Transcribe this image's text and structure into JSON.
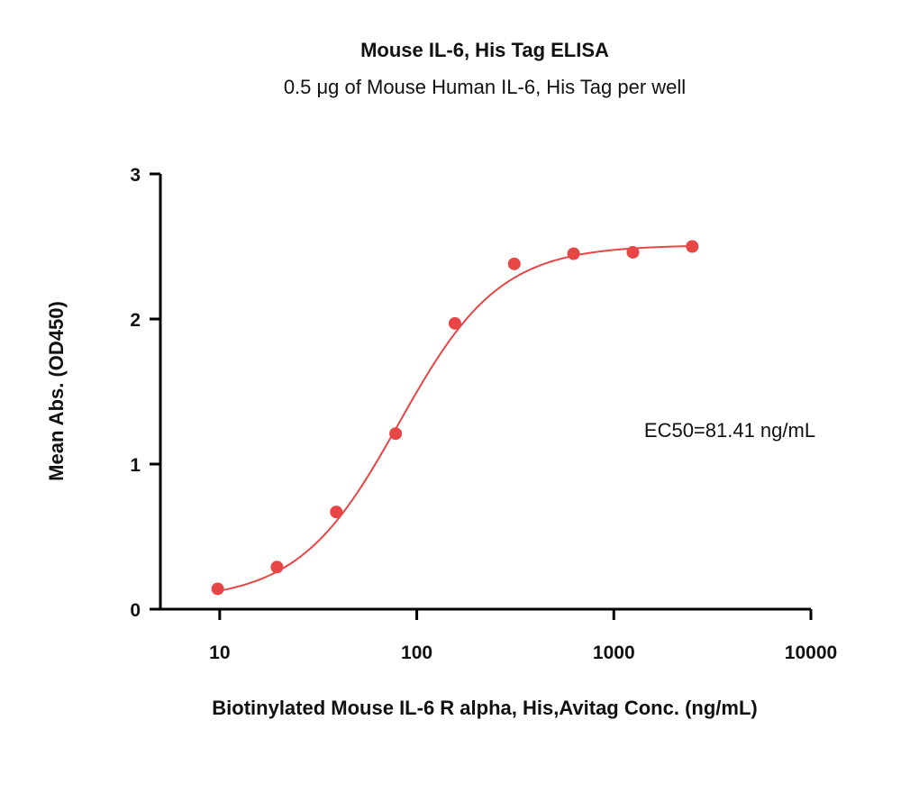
{
  "chart_data": {
    "type": "scatter",
    "title": "Mouse IL-6, His Tag ELISA",
    "subtitle": "0.5 μg of Mouse Human IL-6, His Tag per well",
    "xlabel": "Biotinylated Mouse IL-6 R alpha, His,Avitag Conc. (ng/mL)",
    "ylabel": "Mean Abs. (OD450)",
    "x_scale": "log",
    "xlim": [
      5,
      10000
    ],
    "ylim": [
      0,
      3
    ],
    "x_ticks": [
      10,
      100,
      1000,
      10000
    ],
    "x_tick_labels": [
      "10",
      "100",
      "1000",
      "10000"
    ],
    "y_ticks": [
      0,
      1,
      2,
      3
    ],
    "y_tick_labels": [
      "0",
      "1",
      "2",
      "3"
    ],
    "grid": false,
    "series": [
      {
        "x": [
          9.77,
          19.53,
          39.06,
          78.13,
          156.25,
          312.5,
          625,
          1250,
          2500
        ],
        "y": [
          0.14,
          0.29,
          0.67,
          1.21,
          1.97,
          2.38,
          2.45,
          2.46,
          2.5
        ],
        "color": "#e84545",
        "fit": "4PL",
        "fit_params": {
          "bottom": 0.06,
          "top": 2.51,
          "ec50": 81.41,
          "hill": 1.7
        }
      }
    ],
    "annotations": [
      {
        "text": "EC50=81.41 ng/mL"
      }
    ]
  }
}
